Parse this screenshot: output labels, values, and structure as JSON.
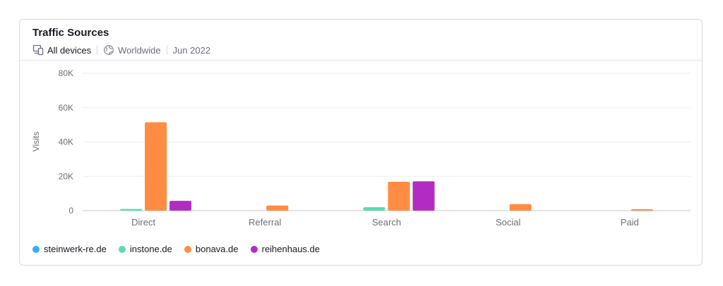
{
  "header": {
    "title": "Traffic Sources",
    "filters": {
      "devices": "All devices",
      "geo": "Worldwide",
      "date": "Jun 2022"
    }
  },
  "icons": {
    "devices": "devices-icon",
    "geo": "globe-icon"
  },
  "chart_data": {
    "type": "bar",
    "ylabel": "Visits",
    "xlabel": "",
    "ylim": [
      0,
      80000
    ],
    "yticks": [
      0,
      20000,
      40000,
      60000,
      80000
    ],
    "ytick_labels": [
      "0",
      "20K",
      "40K",
      "60K",
      "80K"
    ],
    "grid": true,
    "legend_position": "bottom-left",
    "categories": [
      "Direct",
      "Referral",
      "Search",
      "Social",
      "Paid"
    ],
    "series": [
      {
        "name": "steinwerk-re.de",
        "color": "#2fb0f3",
        "values": [
          0,
          0,
          0,
          0,
          0
        ]
      },
      {
        "name": "instone.de",
        "color": "#59ddaa",
        "values": [
          1000,
          0,
          2000,
          0,
          0
        ]
      },
      {
        "name": "bonava.de",
        "color": "#ff8c43",
        "values": [
          51500,
          3000,
          16800,
          3800,
          800
        ]
      },
      {
        "name": "reihenhaus.de",
        "color": "#b22cc3",
        "values": [
          5700,
          0,
          17100,
          0,
          0
        ]
      }
    ]
  }
}
